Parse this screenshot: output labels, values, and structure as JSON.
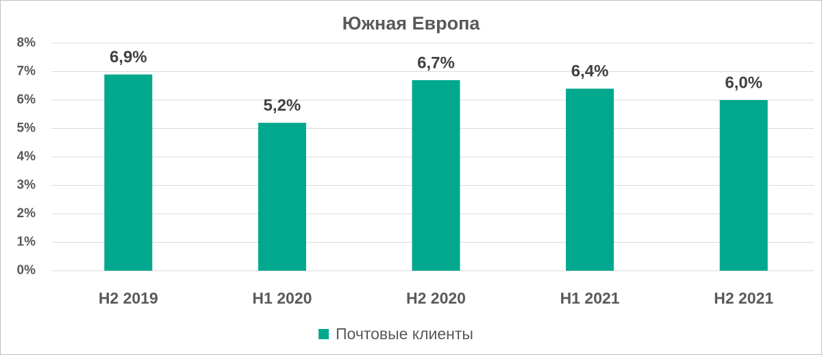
{
  "chart_data": {
    "type": "bar",
    "title": "Южная Европа",
    "categories": [
      "H2 2019",
      "H1 2020",
      "H2 2020",
      "H1 2021",
      "H2 2021"
    ],
    "series": [
      {
        "name": "Почтовые клиенты",
        "color": "#00a88e",
        "values": [
          6.9,
          5.2,
          6.7,
          6.4,
          6.0
        ],
        "value_labels": [
          "6,9%",
          "5,2%",
          "6,7%",
          "6,4%",
          "6,0%"
        ]
      }
    ],
    "ylim": [
      0,
      8
    ],
    "yticks": [
      {
        "value": 0,
        "label": "0%"
      },
      {
        "value": 1,
        "label": "1%"
      },
      {
        "value": 2,
        "label": "2%"
      },
      {
        "value": 3,
        "label": "3%"
      },
      {
        "value": 4,
        "label": "4%"
      },
      {
        "value": 5,
        "label": "5%"
      },
      {
        "value": 6,
        "label": "6%"
      },
      {
        "value": 7,
        "label": "7%"
      },
      {
        "value": 8,
        "label": "8%"
      }
    ],
    "grid": true,
    "legend": "bottom"
  }
}
